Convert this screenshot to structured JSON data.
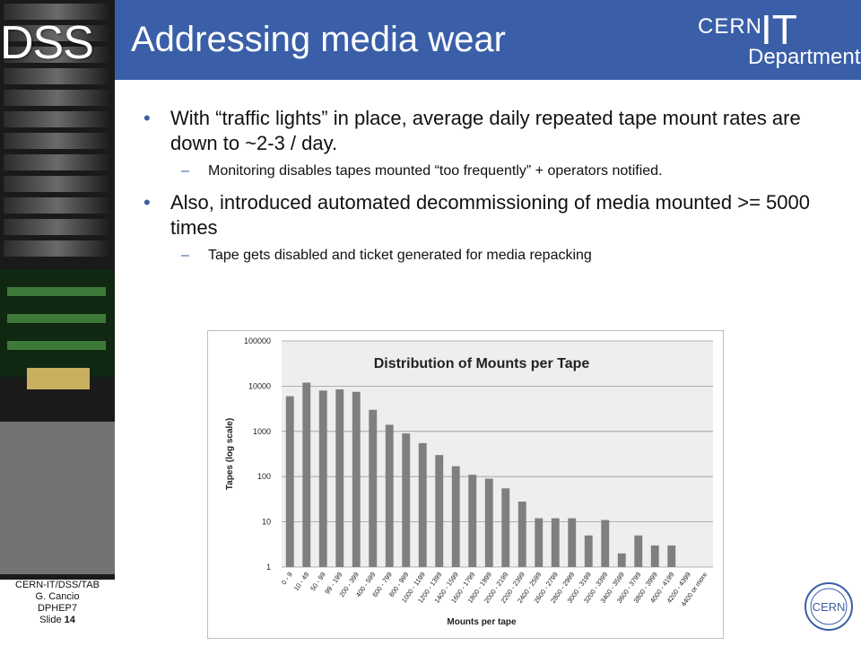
{
  "side": {
    "brand": "DSS"
  },
  "footer": {
    "line1": "CERN-IT/DSS/TAB",
    "line2": "G. Cancio",
    "line3": "DPHEP7",
    "slide_label": "Slide",
    "slide_number": "14"
  },
  "header": {
    "title": "Addressing media wear",
    "logo_cern": "CERN",
    "logo_it": "IT",
    "logo_dept": "Department",
    "color": "#3a5fa8"
  },
  "bullets": [
    {
      "text": "With “traffic lights” in place, average daily repeated tape mount rates are down to ~2-3 / day.",
      "sub": "Monitoring disables tapes mounted “too frequently” + operators notified."
    },
    {
      "text": "Also, introduced automated decommissioning of media mounted >= 5000 times",
      "sub": "Tape gets disabled and ticket generated for media repacking"
    }
  ],
  "badge": {
    "label": "CERN"
  },
  "chart_data": {
    "type": "bar",
    "title": "Distribution of Mounts per Tape",
    "xlabel": "Mounts per tape",
    "ylabel": "Tapes (log scale)",
    "y_scale": "log",
    "ylim": [
      1,
      100000
    ],
    "yticks": [
      "1",
      "10",
      "100",
      "1000",
      "10000",
      "100000"
    ],
    "grid": true,
    "bar_color": "#7f7f7f",
    "categories": [
      "0 - 9",
      "10 - 49",
      "50 - 99",
      "99 - 199",
      "200 - 399",
      "400 - 599",
      "600 - 799",
      "800 - 999",
      "1000 - 1199",
      "1200 - 1399",
      "1400 - 1599",
      "1600 - 1799",
      "1800 - 1999",
      "2000 - 2199",
      "2200 - 2399",
      "2400 - 2599",
      "2600 - 2799",
      "2800 - 2999",
      "3000 - 3199",
      "3200 - 3399",
      "3400 - 3599",
      "3600 - 3799",
      "3800 - 3999",
      "4000 - 4199",
      "4200 - 4399",
      "4400 or more"
    ],
    "values": [
      6000,
      12000,
      8000,
      8500,
      7500,
      3000,
      1400,
      900,
      550,
      300,
      170,
      110,
      90,
      55,
      28,
      12,
      12,
      12,
      5,
      11,
      2,
      5,
      3,
      3,
      0,
      0
    ]
  }
}
